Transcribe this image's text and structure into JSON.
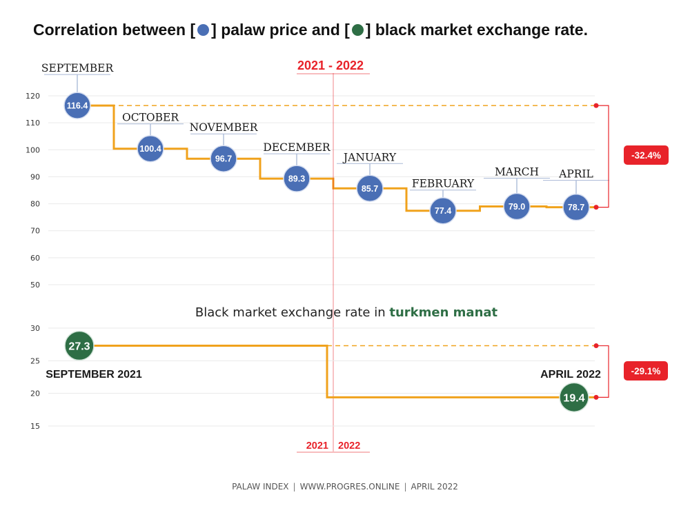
{
  "title": {
    "part1": "Correlation between [",
    "part2": "] palaw price and  [",
    "part3": "] black market exchange rate.",
    "dot1_color": "#4a6fb5",
    "dot2_color": "#2e6e45"
  },
  "period_label": "2021  -  2022",
  "footer": {
    "index": "PALAW INDEX",
    "site": "WWW.PROGRES.ONLINE",
    "date": "APRIL 2022",
    "separator": "|"
  },
  "colors": {
    "line": "#f0a21c",
    "price_circle": "#4a6fb5",
    "rate_circle": "#2e6e45",
    "change_badge": "#e8232a",
    "divider": "#e8232a",
    "accent_text": "#2e6e45"
  },
  "chart_data": [
    {
      "type": "line",
      "step": true,
      "categories": [
        "SEPTEMBER",
        "OCTOBER",
        "NOVEMBER",
        "DECEMBER",
        "JANUARY",
        "FEBRUARY",
        "MARCH",
        "APRIL"
      ],
      "values": [
        116.4,
        100.4,
        96.7,
        89.3,
        85.7,
        77.4,
        79.0,
        78.7
      ],
      "value_labels": [
        "116.4",
        "100.4",
        "96.7",
        "89.3",
        "85.7",
        "77.4",
        "79.0",
        "78.7"
      ],
      "ylim": [
        50,
        120
      ],
      "yticks": [
        "50",
        "60",
        "70",
        "80",
        "90",
        "100",
        "110",
        "120"
      ],
      "grid": true,
      "change_label": "-32.4%"
    },
    {
      "type": "line",
      "step": true,
      "title_prefix": "Black market exchange rate in ",
      "title_accent": "turkmen manat",
      "categories": [
        "SEPTEMBER 2021",
        "APRIL 2022"
      ],
      "values": [
        27.3,
        19.4
      ],
      "value_labels": [
        "27.3",
        "19.4"
      ],
      "ylim": [
        15,
        30
      ],
      "yticks": [
        "15",
        "20",
        "25",
        "30"
      ],
      "grid": true,
      "change_label": "-29.1%",
      "year_labels": [
        "2021",
        "2022"
      ]
    }
  ]
}
